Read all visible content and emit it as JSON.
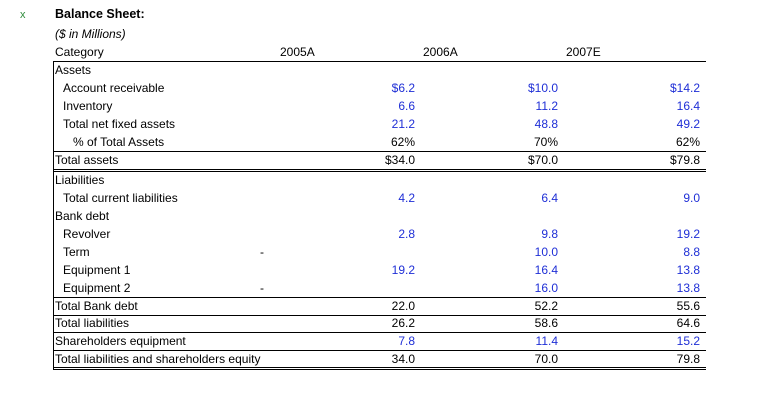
{
  "marker": "x",
  "title": "Balance Sheet:",
  "subtitle": "($ in Millions)",
  "columns": {
    "category": "Category",
    "y2005": "2005A",
    "y2006": "2006A",
    "y2007": "2007E"
  },
  "rows": [
    {
      "label": "Assets",
      "v1": "",
      "v2": "",
      "v3": "",
      "v4": ""
    },
    {
      "label": "Account receivable",
      "v1": "",
      "v2": "$6.2",
      "v3": "$10.0",
      "v4": "$14.2"
    },
    {
      "label": "Inventory",
      "v1": "",
      "v2": "6.6",
      "v3": "11.2",
      "v4": "16.4"
    },
    {
      "label": "Total net fixed assets",
      "v1": "",
      "v2": "21.2",
      "v3": "48.8",
      "v4": "49.2"
    },
    {
      "label": "% of Total Assets",
      "v1": "",
      "v2": "62%",
      "v3": "70%",
      "v4": "62%"
    },
    {
      "label": "Total assets",
      "v1": "",
      "v2": "$34.0",
      "v3": "$70.0",
      "v4": "$79.8"
    },
    {
      "label": "Liabilities",
      "v1": "",
      "v2": "",
      "v3": "",
      "v4": ""
    },
    {
      "label": "Total current liabilities",
      "v1": "",
      "v2": "4.2",
      "v3": "6.4",
      "v4": "9.0"
    },
    {
      "label": "Bank debt",
      "v1": "",
      "v2": "",
      "v3": "",
      "v4": ""
    },
    {
      "label": "Revolver",
      "v1": "",
      "v2": "2.8",
      "v3": "9.8",
      "v4": "19.2"
    },
    {
      "label": "Term",
      "v1": "-",
      "v2": "",
      "v3": "10.0",
      "v4": "8.8"
    },
    {
      "label": "Equipment 1",
      "v1": "",
      "v2": "19.2",
      "v3": "16.4",
      "v4": "13.8"
    },
    {
      "label": "Equipment 2",
      "v1": "-",
      "v2": "",
      "v3": "16.0",
      "v4": "13.8"
    },
    {
      "label": "Total Bank debt",
      "v1": "",
      "v2": "22.0",
      "v3": "52.2",
      "v4": "55.6"
    },
    {
      "label": "Total liabilities",
      "v1": "",
      "v2": "26.2",
      "v3": "58.6",
      "v4": "64.6"
    },
    {
      "label": "Shareholders equipment",
      "v1": "",
      "v2": "7.8",
      "v3": "11.4",
      "v4": "15.2"
    },
    {
      "label": "Total liabilities and shareholders equity",
      "v1": "",
      "v2": "34.0",
      "v3": "70.0",
      "v4": "79.8"
    }
  ],
  "colors": {
    "input_blue": "#1f2fd6",
    "marker_green": "#2e8b3a"
  }
}
